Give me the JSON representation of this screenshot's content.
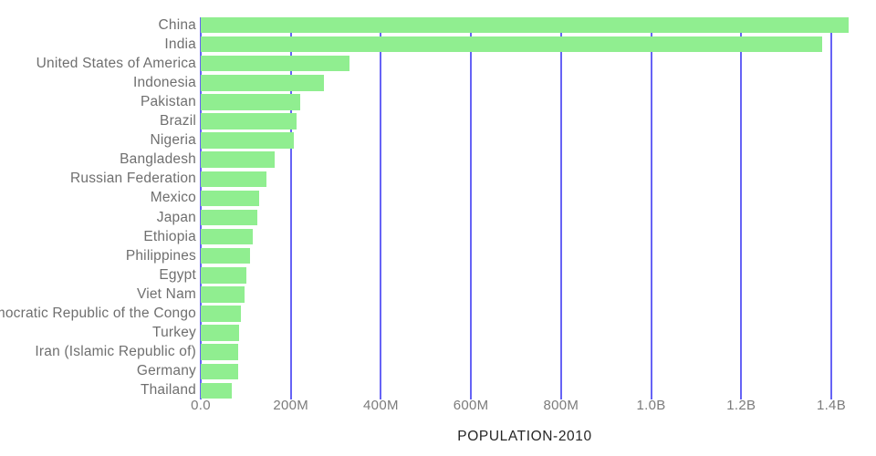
{
  "chart_data": {
    "type": "bar",
    "orientation": "horizontal",
    "title": "",
    "xlabel": "POPULATION-2010",
    "ylabel": "",
    "legend": "none",
    "grid": "vertical-gridlines",
    "xlim_millions": [
      0,
      1480
    ],
    "categories": [
      "China",
      "India",
      "United States of America",
      "Indonesia",
      "Pakistan",
      "Brazil",
      "Nigeria",
      "Bangladesh",
      "Russian Federation",
      "Mexico",
      "Japan",
      "Ethiopia",
      "Philippines",
      "Egypt",
      "Viet Nam",
      "Democratic Republic of the Congo",
      "Turkey",
      "Iran (Islamic Republic of)",
      "Germany",
      "Thailand"
    ],
    "values_millions": [
      1439.3,
      1380.0,
      331.0,
      273.5,
      220.9,
      212.6,
      206.1,
      164.7,
      145.9,
      128.9,
      126.5,
      115.0,
      109.6,
      102.3,
      97.3,
      89.6,
      84.3,
      84.0,
      83.8,
      69.8
    ],
    "x_ticks": [
      {
        "label": "0.0",
        "millions": 0
      },
      {
        "label": "200M",
        "millions": 200
      },
      {
        "label": "400M",
        "millions": 400
      },
      {
        "label": "600M",
        "millions": 600
      },
      {
        "label": "800M",
        "millions": 800
      },
      {
        "label": "1.0B",
        "millions": 1000
      },
      {
        "label": "1.2B",
        "millions": 1200
      },
      {
        "label": "1.4B",
        "millions": 1400
      }
    ],
    "colors": {
      "bar_fill": "#90ee90",
      "gridline": "#6663f5",
      "category_label": "#6f6f6f",
      "tick_label": "#7c7c7c",
      "axis_title": "#262626",
      "background": "#ffffff"
    }
  }
}
